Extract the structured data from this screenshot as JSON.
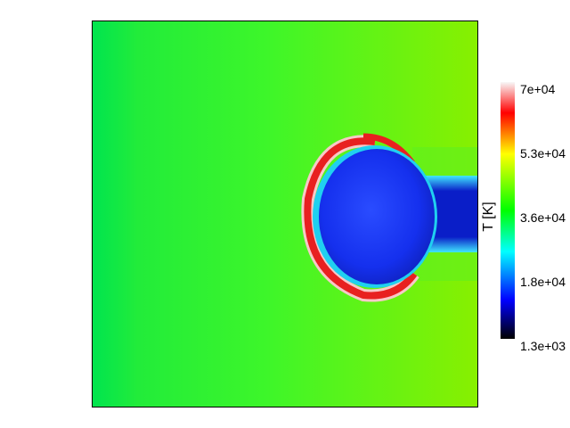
{
  "figure": {
    "colorbar": {
      "label": "T [K]",
      "ticks": [
        "7e+04",
        "5.3e+04",
        "3.6e+04",
        "1.8e+04",
        "1.3e+03"
      ],
      "colors": [
        "#f8f8f8",
        "#ff0000",
        "#ffff00",
        "#00ff00",
        "#00ffff",
        "#0000ff",
        "#000000"
      ]
    },
    "field_colors": {
      "background_left": "#00e44f",
      "background_mid": "#3df62a",
      "background_right": "#88f000",
      "bubble_core": "#1530ee",
      "shell": "#ec2a2a",
      "jet": "#0a1ec8",
      "jet_edge": "#1cd4f0"
    }
  }
}
